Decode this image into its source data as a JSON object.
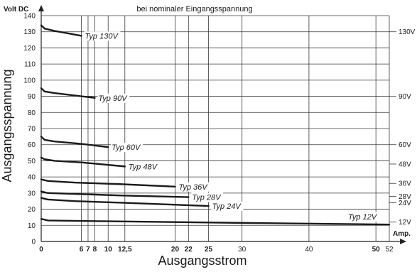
{
  "chart_data": {
    "type": "line",
    "title": "bei nominaler Eingangsspannung",
    "xlabel": "Ausgangsstrom",
    "ylabel": "Ausgangsspannung",
    "x_unit": "Amp.",
    "y_unit": "Volt DC",
    "xlim": [
      0,
      52
    ],
    "ylim": [
      0,
      140
    ],
    "grid": true,
    "x_ticks": [
      {
        "value": 0,
        "label": "0",
        "bold": true
      },
      {
        "value": 6,
        "label": "6",
        "bold": true
      },
      {
        "value": 7,
        "label": "7",
        "bold": true
      },
      {
        "value": 8,
        "label": "8",
        "bold": true
      },
      {
        "value": 10,
        "label": "10",
        "bold": true
      },
      {
        "value": 12.5,
        "label": "12,5",
        "bold": true
      },
      {
        "value": 20,
        "label": "20",
        "bold": true
      },
      {
        "value": 22,
        "label": "22",
        "bold": true
      },
      {
        "value": 25,
        "label": "25",
        "bold": true
      },
      {
        "value": 30,
        "label": "30",
        "bold": false
      },
      {
        "value": 40,
        "label": "40",
        "bold": false
      },
      {
        "value": 50,
        "label": "50",
        "bold": true
      },
      {
        "value": 52,
        "label": "52",
        "bold": false
      }
    ],
    "y_ticks": [
      0,
      10,
      20,
      30,
      40,
      50,
      60,
      70,
      80,
      90,
      100,
      110,
      120,
      130,
      140
    ],
    "series": [
      {
        "name": "Typ 130V",
        "right_label": "130V",
        "nominal": 130,
        "x": [
          0,
          0.5,
          2,
          4,
          6
        ],
        "y": [
          134,
          132,
          130.5,
          129,
          127.5
        ]
      },
      {
        "name": "Typ 90V",
        "right_label": "90V",
        "nominal": 90,
        "x": [
          0,
          0.5,
          2,
          5,
          8
        ],
        "y": [
          95,
          93,
          92,
          90.5,
          89
        ]
      },
      {
        "name": "Typ 60V",
        "right_label": "60V",
        "nominal": 60,
        "x": [
          0,
          0.5,
          2,
          6,
          10
        ],
        "y": [
          65,
          63,
          62,
          60.5,
          58.5
        ]
      },
      {
        "name": "Typ 48V",
        "right_label": "48V",
        "nominal": 48,
        "x": [
          0,
          0.5,
          2,
          6,
          12.5
        ],
        "y": [
          52,
          51,
          50,
          49,
          46.5
        ]
      },
      {
        "name": "Typ 36V",
        "right_label": "36V",
        "nominal": 36,
        "x": [
          0,
          1,
          5,
          12,
          20
        ],
        "y": [
          38.5,
          37.5,
          36.5,
          35.5,
          34
        ]
      },
      {
        "name": "Typ 28V",
        "right_label": "28V",
        "nominal": 28,
        "x": [
          0,
          1,
          5,
          12,
          22
        ],
        "y": [
          31,
          30,
          29.5,
          28.5,
          27.5
        ]
      },
      {
        "name": "Typ 24V",
        "right_label": "24V",
        "nominal": 24,
        "x": [
          0,
          1,
          5,
          12,
          25
        ],
        "y": [
          27,
          26,
          25,
          24,
          22
        ]
      },
      {
        "name": "Typ 12V",
        "right_label": "12V",
        "nominal": 12,
        "x": [
          0,
          1,
          10,
          30,
          52
        ],
        "y": [
          14,
          13,
          12.5,
          11.5,
          10.5
        ]
      }
    ]
  }
}
